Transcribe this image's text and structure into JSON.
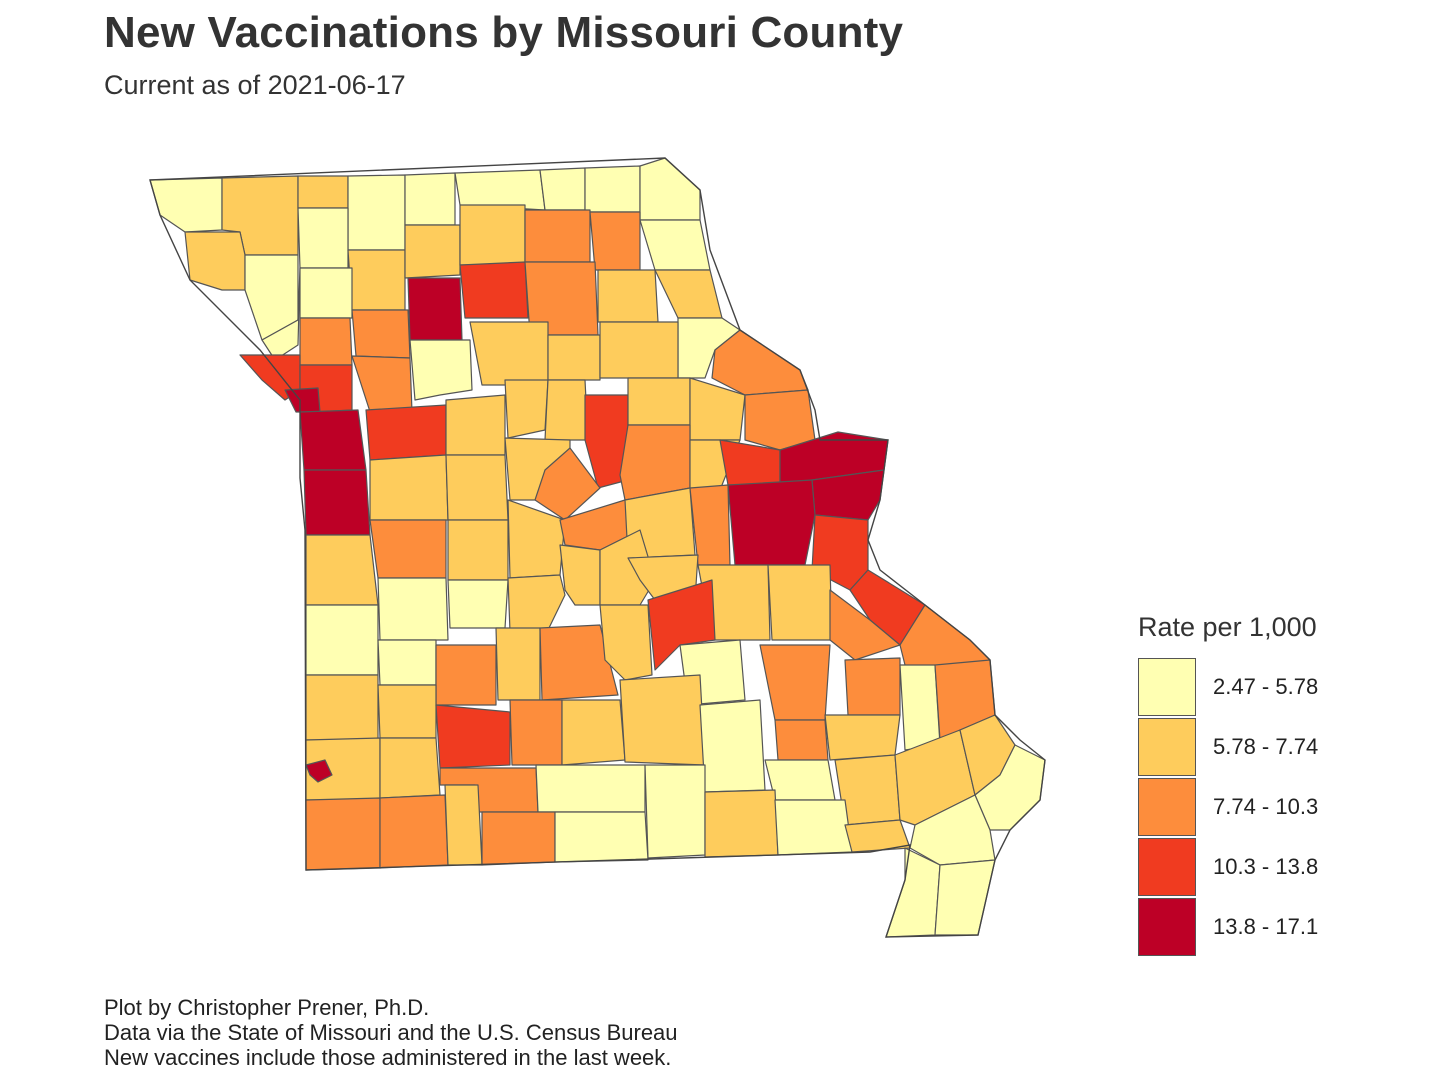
{
  "title": "New Vaccinations by Missouri County",
  "subtitle": "Current as of 2021-06-17",
  "legend": {
    "title": "Rate per 1,000",
    "bins": [
      {
        "label": "2.47 - 5.78",
        "color": "#FFFFB2"
      },
      {
        "label": "5.78 - 7.74",
        "color": "#FECC5C"
      },
      {
        "label": "7.74 - 10.3",
        "color": "#FD8D3C"
      },
      {
        "label": "10.3 - 13.8",
        "color": "#F03B20"
      },
      {
        "label": "13.8 - 17.1",
        "color": "#BD0026"
      }
    ]
  },
  "caption": [
    "Plot by Christopher Prener, Ph.D.",
    "Data via the State of Missouri and the U.S. Census Bureau",
    "New vaccines include those administered in the last week."
  ],
  "map": {
    "region": "Missouri counties",
    "counties_by_bin": {
      "2.47 - 5.78": 32,
      "5.78 - 7.74": 43,
      "7.74 - 10.3": 24,
      "10.3 - 13.8": 9,
      "13.8 - 17.1": 7
    }
  }
}
